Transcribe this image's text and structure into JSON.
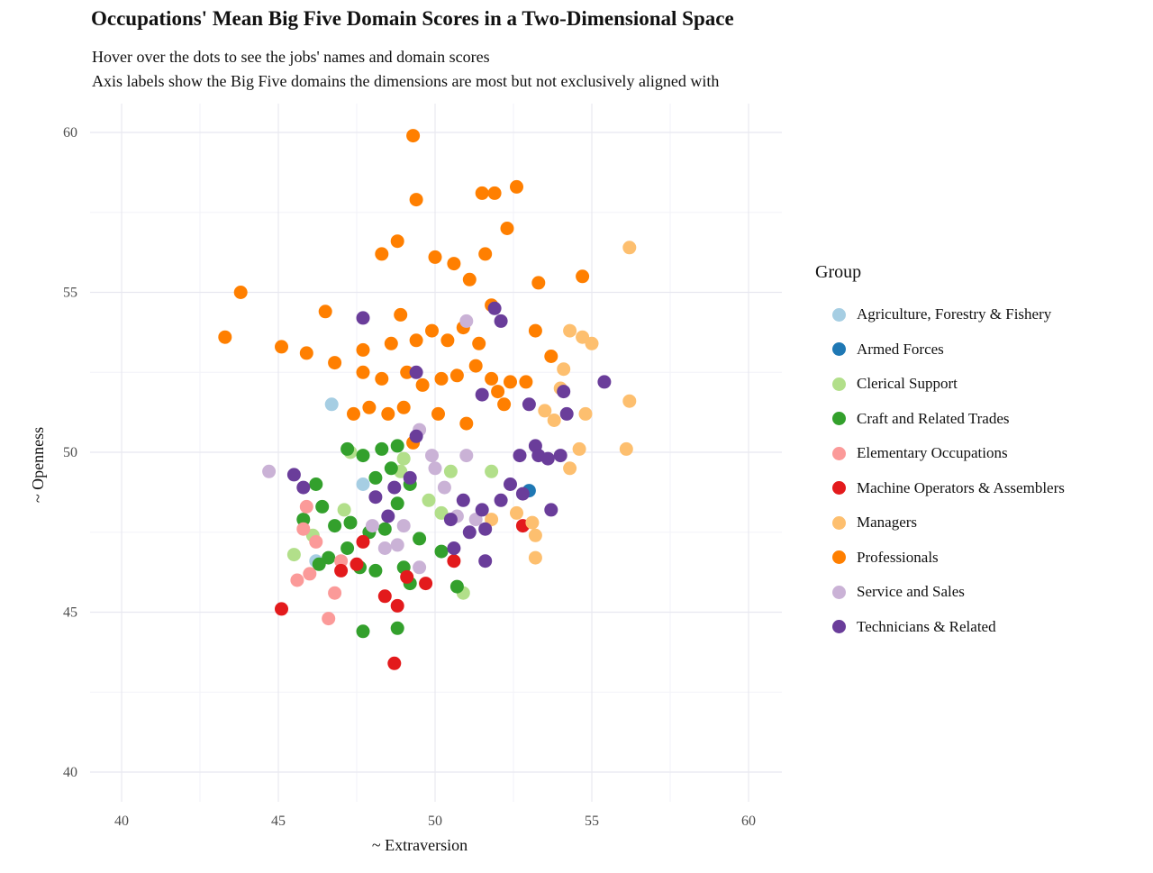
{
  "title": "Occupations' Mean Big Five Domain Scores in a Two-Dimensional Space",
  "subtitle_line1": "Hover over the dots to see the jobs' names and domain scores",
  "subtitle_line2": "Axis labels show the Big Five domains the dimensions are most but not exclusively aligned with",
  "legend": {
    "title": "Group"
  },
  "chart_data": {
    "type": "scatter",
    "title": "Occupations' Mean Big Five Domain Scores in a Two-Dimensional Space",
    "xlabel": "~ Extraversion",
    "ylabel": "~ Openness",
    "xlim": [
      39,
      61
    ],
    "ylim": [
      39,
      61
    ],
    "xticks": [
      40,
      45,
      50,
      55,
      60
    ],
    "yticks": [
      40,
      45,
      50,
      55,
      60
    ],
    "grid": true,
    "legend_position": "right",
    "series": [
      {
        "name": "Agriculture, Forestry & Fishery",
        "color": "#a6cee3",
        "points": [
          [
            46.7,
            51.5
          ],
          [
            47.7,
            49.0
          ],
          [
            46.2,
            46.6
          ]
        ]
      },
      {
        "name": "Armed Forces",
        "color": "#1f78b4",
        "points": [
          [
            53.0,
            48.8
          ]
        ]
      },
      {
        "name": "Clerical Support",
        "color": "#b2df8a",
        "points": [
          [
            45.5,
            46.8
          ],
          [
            46.1,
            47.4
          ],
          [
            47.1,
            48.2
          ],
          [
            49.0,
            49.8
          ],
          [
            50.5,
            49.4
          ],
          [
            51.8,
            49.4
          ],
          [
            49.8,
            48.5
          ],
          [
            50.2,
            48.1
          ],
          [
            50.9,
            45.6
          ],
          [
            47.3,
            50.0
          ],
          [
            48.9,
            49.4
          ]
        ]
      },
      {
        "name": "Craft and Related Trades",
        "color": "#33a02c",
        "points": [
          [
            47.2,
            50.1
          ],
          [
            47.7,
            49.9
          ],
          [
            48.3,
            50.1
          ],
          [
            48.8,
            50.2
          ],
          [
            48.6,
            49.5
          ],
          [
            49.2,
            49.0
          ],
          [
            48.1,
            49.2
          ],
          [
            48.8,
            48.4
          ],
          [
            46.2,
            49.0
          ],
          [
            46.4,
            48.3
          ],
          [
            45.8,
            47.9
          ],
          [
            46.8,
            47.7
          ],
          [
            47.3,
            47.8
          ],
          [
            47.9,
            47.5
          ],
          [
            48.4,
            47.6
          ],
          [
            47.2,
            47.0
          ],
          [
            46.6,
            46.7
          ],
          [
            47.6,
            46.4
          ],
          [
            48.1,
            46.3
          ],
          [
            49.0,
            46.4
          ],
          [
            49.2,
            45.9
          ],
          [
            47.7,
            44.4
          ],
          [
            48.8,
            44.5
          ],
          [
            50.7,
            45.8
          ],
          [
            49.5,
            47.3
          ],
          [
            50.2,
            46.9
          ],
          [
            46.3,
            46.5
          ]
        ]
      },
      {
        "name": "Elementary Occupations",
        "color": "#fb9a99",
        "points": [
          [
            45.8,
            47.6
          ],
          [
            46.2,
            47.2
          ],
          [
            45.6,
            46.0
          ],
          [
            46.6,
            44.8
          ],
          [
            46.8,
            45.6
          ],
          [
            46.0,
            46.2
          ],
          [
            47.0,
            46.6
          ],
          [
            45.9,
            48.3
          ]
        ]
      },
      {
        "name": "Machine Operators & Assemblers",
        "color": "#e31a1c",
        "points": [
          [
            45.1,
            45.1
          ],
          [
            47.0,
            46.3
          ],
          [
            47.5,
            46.5
          ],
          [
            47.7,
            47.2
          ],
          [
            48.4,
            45.5
          ],
          [
            48.8,
            45.2
          ],
          [
            49.1,
            46.1
          ],
          [
            49.7,
            45.9
          ],
          [
            48.7,
            43.4
          ],
          [
            50.6,
            46.6
          ],
          [
            52.8,
            47.7
          ]
        ]
      },
      {
        "name": "Managers",
        "color": "#fdbf6f",
        "points": [
          [
            56.2,
            56.4
          ],
          [
            54.3,
            53.8
          ],
          [
            54.7,
            53.6
          ],
          [
            55.0,
            53.4
          ],
          [
            54.0,
            52.0
          ],
          [
            54.8,
            51.2
          ],
          [
            56.2,
            51.6
          ],
          [
            54.6,
            50.1
          ],
          [
            56.1,
            50.1
          ],
          [
            53.8,
            51.0
          ],
          [
            53.5,
            51.3
          ],
          [
            54.3,
            49.5
          ],
          [
            53.1,
            47.8
          ],
          [
            51.8,
            47.9
          ],
          [
            53.2,
            46.7
          ],
          [
            53.2,
            47.4
          ],
          [
            52.6,
            48.1
          ],
          [
            54.1,
            52.6
          ]
        ]
      },
      {
        "name": "Professionals",
        "color": "#ff7f00",
        "points": [
          [
            49.3,
            59.9
          ],
          [
            49.4,
            57.9
          ],
          [
            51.5,
            58.1
          ],
          [
            51.9,
            58.1
          ],
          [
            52.6,
            58.3
          ],
          [
            52.3,
            57.0
          ],
          [
            48.8,
            56.6
          ],
          [
            48.3,
            56.2
          ],
          [
            50.0,
            56.1
          ],
          [
            50.6,
            55.9
          ],
          [
            51.6,
            56.2
          ],
          [
            51.1,
            55.4
          ],
          [
            54.7,
            55.5
          ],
          [
            53.3,
            55.3
          ],
          [
            43.8,
            55.0
          ],
          [
            46.5,
            54.4
          ],
          [
            48.9,
            54.3
          ],
          [
            49.4,
            53.5
          ],
          [
            43.3,
            53.6
          ],
          [
            45.1,
            53.3
          ],
          [
            45.9,
            53.1
          ],
          [
            46.8,
            52.8
          ],
          [
            47.7,
            53.2
          ],
          [
            48.6,
            53.4
          ],
          [
            49.9,
            53.8
          ],
          [
            50.4,
            53.5
          ],
          [
            50.9,
            53.9
          ],
          [
            51.4,
            53.4
          ],
          [
            51.8,
            54.6
          ],
          [
            53.2,
            53.8
          ],
          [
            47.7,
            52.5
          ],
          [
            48.3,
            52.3
          ],
          [
            49.1,
            52.5
          ],
          [
            49.6,
            52.1
          ],
          [
            50.2,
            52.3
          ],
          [
            50.7,
            52.4
          ],
          [
            51.3,
            52.7
          ],
          [
            51.8,
            52.3
          ],
          [
            52.4,
            52.2
          ],
          [
            52.9,
            52.2
          ],
          [
            52.0,
            51.9
          ],
          [
            47.4,
            51.2
          ],
          [
            47.9,
            51.4
          ],
          [
            48.5,
            51.2
          ],
          [
            49.0,
            51.4
          ],
          [
            50.1,
            51.2
          ],
          [
            53.7,
            53.0
          ],
          [
            49.3,
            50.3
          ],
          [
            51.0,
            50.9
          ],
          [
            52.2,
            51.5
          ]
        ]
      },
      {
        "name": "Service and Sales",
        "color": "#cab2d6",
        "points": [
          [
            44.7,
            49.4
          ],
          [
            51.0,
            54.1
          ],
          [
            49.9,
            49.9
          ],
          [
            50.3,
            48.9
          ],
          [
            50.7,
            48.0
          ],
          [
            51.3,
            47.9
          ],
          [
            48.8,
            47.1
          ],
          [
            49.0,
            47.7
          ],
          [
            48.4,
            47.0
          ],
          [
            49.5,
            46.4
          ],
          [
            51.0,
            49.9
          ],
          [
            49.5,
            50.7
          ],
          [
            50.0,
            49.5
          ],
          [
            48.0,
            47.7
          ]
        ]
      },
      {
        "name": "Technicians & Related",
        "color": "#6a3d9a",
        "points": [
          [
            47.7,
            54.2
          ],
          [
            51.9,
            54.5
          ],
          [
            52.1,
            54.1
          ],
          [
            49.4,
            52.5
          ],
          [
            51.5,
            51.8
          ],
          [
            55.4,
            52.2
          ],
          [
            54.1,
            51.9
          ],
          [
            53.0,
            51.5
          ],
          [
            54.2,
            51.2
          ],
          [
            53.2,
            50.2
          ],
          [
            52.7,
            49.9
          ],
          [
            53.3,
            49.9
          ],
          [
            53.6,
            49.8
          ],
          [
            54.0,
            49.9
          ],
          [
            52.4,
            49.0
          ],
          [
            52.8,
            48.7
          ],
          [
            52.1,
            48.5
          ],
          [
            51.5,
            48.2
          ],
          [
            53.7,
            48.2
          ],
          [
            51.1,
            47.5
          ],
          [
            51.6,
            47.6
          ],
          [
            50.6,
            47.0
          ],
          [
            51.6,
            46.6
          ],
          [
            49.2,
            49.2
          ],
          [
            48.7,
            48.9
          ],
          [
            48.1,
            48.6
          ],
          [
            48.5,
            48.0
          ],
          [
            45.5,
            49.3
          ],
          [
            45.8,
            48.9
          ],
          [
            49.4,
            50.5
          ],
          [
            50.5,
            47.9
          ],
          [
            50.9,
            48.5
          ]
        ]
      }
    ]
  }
}
